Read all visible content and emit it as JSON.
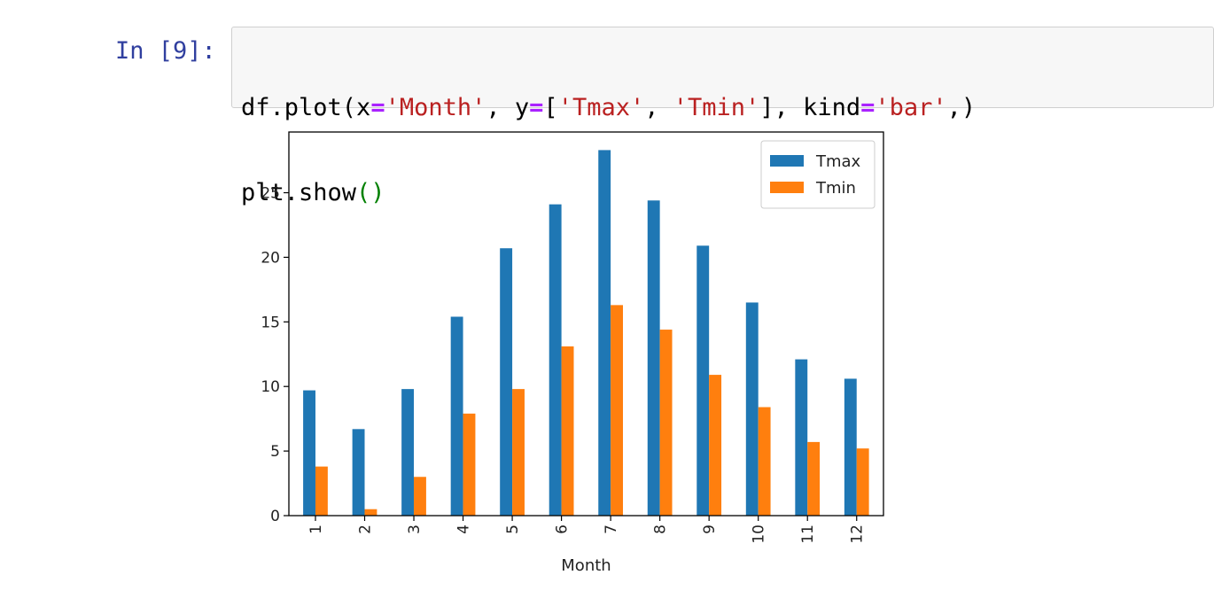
{
  "cell": {
    "prompt": "In [9]:",
    "code_line1": [
      {
        "t": "df.plot(x",
        "c": "plain"
      },
      {
        "t": "=",
        "c": "op"
      },
      {
        "t": "'Month'",
        "c": "str"
      },
      {
        "t": ", y",
        "c": "plain"
      },
      {
        "t": "=",
        "c": "op"
      },
      {
        "t": "[",
        "c": "plain"
      },
      {
        "t": "'Tmax'",
        "c": "str"
      },
      {
        "t": ", ",
        "c": "plain"
      },
      {
        "t": "'Tmin'",
        "c": "str"
      },
      {
        "t": "], kind",
        "c": "plain"
      },
      {
        "t": "=",
        "c": "op"
      },
      {
        "t": "'bar'",
        "c": "str"
      },
      {
        "t": ",)",
        "c": "plain"
      }
    ],
    "code_line2": [
      {
        "t": "plt.show",
        "c": "plain"
      },
      {
        "t": "()",
        "c": "paren"
      }
    ]
  },
  "chart_data": {
    "type": "bar",
    "categories": [
      "1",
      "2",
      "3",
      "4",
      "5",
      "6",
      "7",
      "8",
      "9",
      "10",
      "11",
      "12"
    ],
    "series": [
      {
        "name": "Tmax",
        "color": "#1f77b4",
        "values": [
          9.7,
          6.7,
          9.8,
          15.4,
          20.7,
          24.1,
          28.3,
          24.4,
          20.9,
          16.5,
          12.1,
          10.6
        ]
      },
      {
        "name": "Tmin",
        "color": "#ff7f0e",
        "values": [
          3.8,
          0.5,
          3.0,
          7.9,
          9.8,
          13.1,
          16.3,
          14.4,
          10.9,
          8.4,
          5.7,
          5.2
        ]
      }
    ],
    "xlabel": "Month",
    "ylabel": "",
    "ylim": [
      0,
      29.7
    ],
    "yticks": [
      0,
      5,
      10,
      15,
      20,
      25
    ],
    "legend": "top-right",
    "grid": false
  }
}
